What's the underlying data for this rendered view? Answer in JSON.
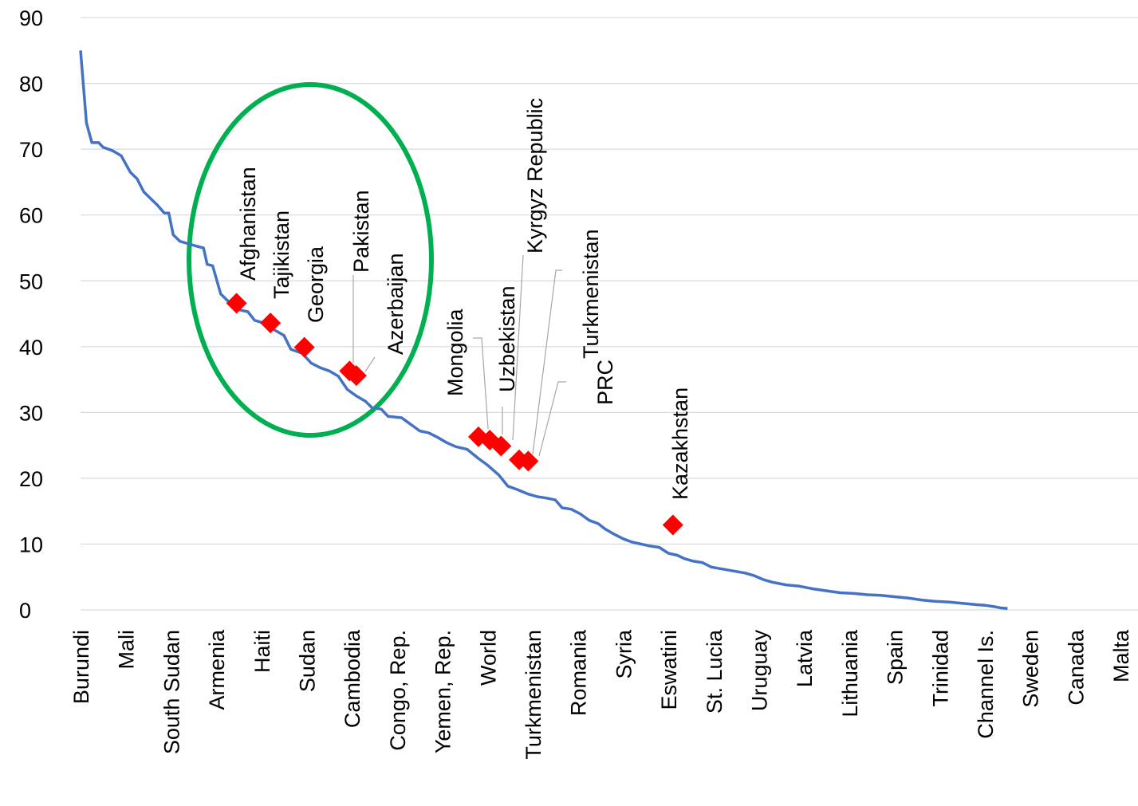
{
  "chart_data": {
    "type": "line",
    "title": "",
    "xlabel": "",
    "ylabel": "",
    "ylim": [
      0,
      90
    ],
    "yticks": [
      "0",
      "10",
      "20",
      "30",
      "40",
      "50",
      "60",
      "70",
      "80",
      "90"
    ],
    "grid": true,
    "legend": "none",
    "categories": [
      "Burundi",
      "Mali",
      "South Sudan",
      "Armenia",
      "Haiti",
      "Sudan",
      "Cambodia",
      "Congo, Rep.",
      "Yemen, Rep.",
      "World",
      "Turkmenistan",
      "Romania",
      "Syria",
      "Eswatini",
      "St. Lucia",
      "Uruguay",
      "Latvia",
      "Lithuania",
      "Spain",
      "Trinidad",
      "Channel Is.",
      "Sweden",
      "Canada",
      "Malta"
    ],
    "series": [
      {
        "color": "#4472c4",
        "points": [
          [
            0,
            85
          ],
          [
            0.13,
            74
          ],
          [
            0.25,
            71
          ],
          [
            0.4,
            71
          ],
          [
            0.5,
            70.3
          ],
          [
            0.7,
            69.8
          ],
          [
            0.9,
            69
          ],
          [
            1.1,
            66.5
          ],
          [
            1.25,
            65.5
          ],
          [
            1.4,
            63.5
          ],
          [
            1.55,
            62.5
          ],
          [
            1.7,
            61.5
          ],
          [
            1.85,
            60.3
          ],
          [
            1.95,
            60.3
          ],
          [
            2.05,
            57
          ],
          [
            2.2,
            56
          ],
          [
            2.4,
            55.6
          ],
          [
            2.55,
            55.3
          ],
          [
            2.72,
            55
          ],
          [
            2.8,
            52.5
          ],
          [
            2.92,
            52.3
          ],
          [
            3.1,
            48
          ],
          [
            3.25,
            47
          ],
          [
            3.5,
            45.6
          ],
          [
            3.7,
            45.3
          ],
          [
            3.85,
            44
          ],
          [
            4.1,
            43.5
          ],
          [
            4.3,
            42.5
          ],
          [
            4.5,
            41.7
          ],
          [
            4.65,
            39.6
          ],
          [
            4.9,
            39
          ],
          [
            5.1,
            37.5
          ],
          [
            5.3,
            36.8
          ],
          [
            5.5,
            36.3
          ],
          [
            5.7,
            35.5
          ],
          [
            5.9,
            33.5
          ],
          [
            6.1,
            32.5
          ],
          [
            6.3,
            31.7
          ],
          [
            6.45,
            30.7
          ],
          [
            6.65,
            30.5
          ],
          [
            6.8,
            29.4
          ],
          [
            7.1,
            29.2
          ],
          [
            7.3,
            28.2
          ],
          [
            7.5,
            27.2
          ],
          [
            7.7,
            26.9
          ],
          [
            7.9,
            26.2
          ],
          [
            8.1,
            25.4
          ],
          [
            8.3,
            24.8
          ],
          [
            8.55,
            24.4
          ],
          [
            8.8,
            23
          ],
          [
            9.0,
            22
          ],
          [
            9.25,
            20.5
          ],
          [
            9.45,
            18.8
          ],
          [
            9.65,
            18.3
          ],
          [
            9.9,
            17.6
          ],
          [
            10.1,
            17.2
          ],
          [
            10.3,
            17
          ],
          [
            10.5,
            16.7
          ],
          [
            10.65,
            15.5
          ],
          [
            10.85,
            15.3
          ],
          [
            11.05,
            14.6
          ],
          [
            11.25,
            13.6
          ],
          [
            11.45,
            13.1
          ],
          [
            11.6,
            12.3
          ],
          [
            11.8,
            11.5
          ],
          [
            12.0,
            10.8
          ],
          [
            12.2,
            10.3
          ],
          [
            12.4,
            10
          ],
          [
            12.6,
            9.7
          ],
          [
            12.8,
            9.5
          ],
          [
            13.0,
            8.6
          ],
          [
            13.2,
            8.3
          ],
          [
            13.35,
            7.8
          ],
          [
            13.55,
            7.4
          ],
          [
            13.75,
            7.2
          ],
          [
            13.95,
            6.5
          ],
          [
            14.2,
            6.2
          ],
          [
            14.45,
            5.9
          ],
          [
            14.7,
            5.6
          ],
          [
            14.9,
            5.2
          ],
          [
            15.1,
            4.6
          ],
          [
            15.3,
            4.2
          ],
          [
            15.6,
            3.8
          ],
          [
            15.9,
            3.6
          ],
          [
            16.2,
            3.2
          ],
          [
            16.5,
            2.9
          ],
          [
            16.8,
            2.6
          ],
          [
            17.1,
            2.5
          ],
          [
            17.4,
            2.3
          ],
          [
            17.7,
            2.2
          ],
          [
            18.0,
            2.0
          ],
          [
            18.3,
            1.8
          ],
          [
            18.6,
            1.5
          ],
          [
            18.9,
            1.3
          ],
          [
            19.2,
            1.2
          ],
          [
            19.5,
            1.0
          ],
          [
            19.8,
            0.8
          ],
          [
            20.0,
            0.7
          ],
          [
            20.2,
            0.5
          ],
          [
            20.35,
            0.3
          ],
          [
            20.5,
            0.2
          ]
        ]
      }
    ],
    "highlights": [
      {
        "label": "Afghanistan",
        "x": 3.45,
        "y": 46.6,
        "color": "#ff0000"
      },
      {
        "label": "Tajikistan",
        "x": 4.2,
        "y": 43.6,
        "color": "#ff0000"
      },
      {
        "label": "Georgia",
        "x": 4.95,
        "y": 39.9,
        "color": "#ff0000"
      },
      {
        "label": "Pakistan",
        "x": 5.95,
        "y": 36.3,
        "color": "#ff0000"
      },
      {
        "label": "Azerbaijan",
        "x": 6.1,
        "y": 35.6,
        "color": "#ff0000"
      },
      {
        "label": "Mongolia",
        "x": 8.8,
        "y": 26.3,
        "color": "#ff0000"
      },
      {
        "label": "Uzbekistan",
        "x": 9.05,
        "y": 25.8,
        "color": "#ff0000"
      },
      {
        "label": "Kyrgyz Republic",
        "x": 9.3,
        "y": 24.9,
        "color": "#ff0000"
      },
      {
        "label": "Turkmenistan",
        "x": 9.7,
        "y": 22.8,
        "color": "#ff0000"
      },
      {
        "label": "PRC",
        "x": 9.9,
        "y": 22.6,
        "color": "#ff0000"
      },
      {
        "label": "Kazakhstan",
        "x": 13.1,
        "y": 12.9,
        "color": "#ff0000"
      }
    ],
    "ellipse_color": "#00b050"
  }
}
